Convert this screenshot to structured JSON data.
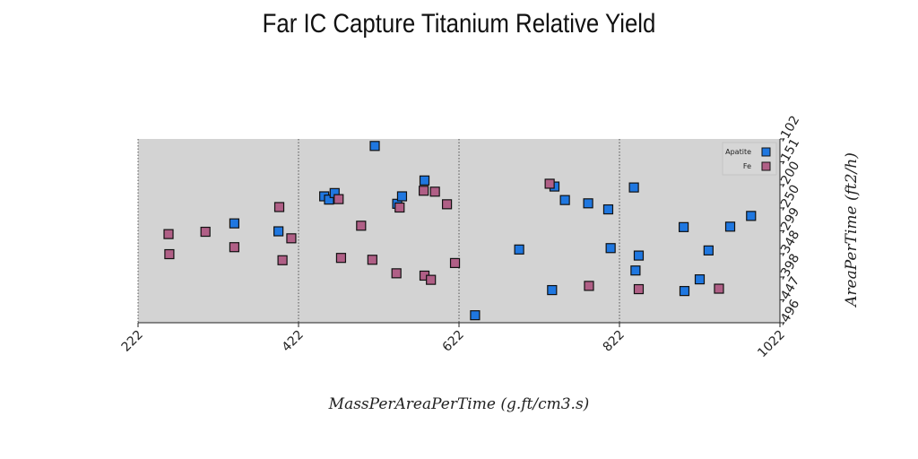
{
  "chart_data": {
    "type": "scatter",
    "title": "Far IC Capture Titanium Relative Yield",
    "xlabel": "MassPerAreaPerTime (g.ft/cm3.s)",
    "ylabel": "AreaPerTime (ft2/h)",
    "xlim": [
      222,
      1022
    ],
    "ylim": [
      -496,
      -102
    ],
    "x_ticks": [
      "222",
      "422",
      "622",
      "822",
      "1022"
    ],
    "y_ticks": [
      "-102",
      "-151",
      "-200",
      "-250",
      "-299",
      "-348",
      "-398",
      "-447",
      "-496"
    ],
    "grid": "vertical dotted",
    "legend_position": "top-right",
    "series": [
      {
        "name": "Apatite",
        "color": "#1f77e0",
        "points": [
          [
            342,
            -283
          ],
          [
            397,
            -300
          ],
          [
            454,
            -225
          ],
          [
            460,
            -232
          ],
          [
            467,
            -218
          ],
          [
            517,
            -117
          ],
          [
            545,
            -241
          ],
          [
            551,
            -225
          ],
          [
            579,
            -191
          ],
          [
            642,
            -480
          ],
          [
            697,
            -339
          ],
          [
            754,
            -233
          ],
          [
            738,
            -426
          ],
          [
            741,
            -204
          ],
          [
            783,
            -240
          ],
          [
            808,
            -253
          ],
          [
            811,
            -336
          ],
          [
            842,
            -384
          ],
          [
            840,
            -206
          ],
          [
            846,
            -352
          ],
          [
            903,
            -428
          ],
          [
            902,
            -291
          ],
          [
            922,
            -403
          ],
          [
            933,
            -341
          ],
          [
            960,
            -290
          ],
          [
            986,
            -267
          ]
        ]
      },
      {
        "name": "Fe",
        "color": "#b05f86",
        "points": [
          [
            260,
            -306
          ],
          [
            261,
            -349
          ],
          [
            306,
            -301
          ],
          [
            342,
            -334
          ],
          [
            398,
            -248
          ],
          [
            402,
            -362
          ],
          [
            413,
            -315
          ],
          [
            475,
            -357
          ],
          [
            472,
            -231
          ],
          [
            500,
            -288
          ],
          [
            514,
            -361
          ],
          [
            544,
            -390
          ],
          [
            548,
            -249
          ],
          [
            578,
            -213
          ],
          [
            579,
            -395
          ],
          [
            587,
            -404
          ],
          [
            592,
            -215
          ],
          [
            607,
            -242
          ],
          [
            617,
            -368
          ],
          [
            735,
            -198
          ],
          [
            784,
            -417
          ],
          [
            846,
            -424
          ],
          [
            946,
            -423
          ]
        ]
      }
    ]
  }
}
